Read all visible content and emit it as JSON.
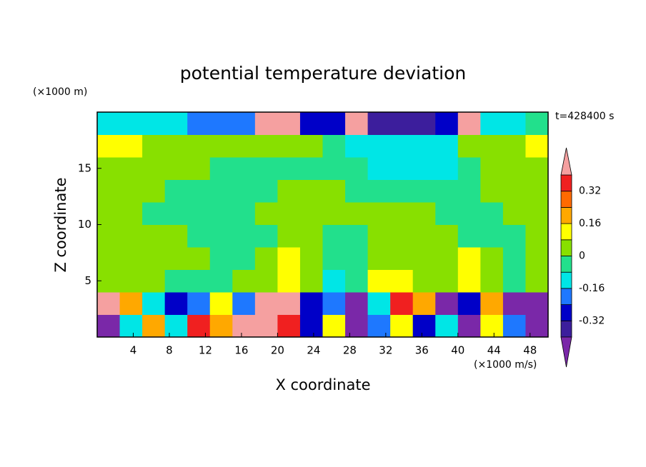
{
  "chart_data": {
    "type": "contour",
    "title": "potential temperature deviation",
    "x_label": "X coordinate",
    "y_label": "Z coordinate",
    "x_unit": "(×1000 m/s)",
    "y_unit": "(×1000 m)",
    "annotation": "t=428400 s",
    "xlim": [
      0,
      50
    ],
    "ylim": [
      0,
      20
    ],
    "xticks": [
      4,
      8,
      12,
      16,
      20,
      24,
      28,
      32,
      36,
      40,
      44,
      48
    ],
    "yticks": [
      5,
      10,
      15
    ],
    "x": [
      1.25,
      3.75,
      6.25,
      8.75,
      11.25,
      13.75,
      16.25,
      18.75,
      21.25,
      23.75,
      26.25,
      28.75,
      31.25,
      33.75,
      36.25,
      38.75,
      41.25,
      43.75,
      46.25,
      48.75
    ],
    "y": [
      1,
      3,
      5,
      7,
      9,
      11,
      13,
      15,
      17,
      19
    ],
    "values": [
      [
        -0.45,
        -0.12,
        0.2,
        -0.12,
        0.36,
        0.2,
        0.45,
        0.45,
        0.36,
        -0.28,
        0.1,
        -0.45,
        -0.2,
        0.1,
        -0.28,
        -0.12,
        -0.45,
        0.1,
        -0.2,
        -0.45
      ],
      [
        0.45,
        0.2,
        -0.12,
        -0.28,
        -0.2,
        0.1,
        -0.2,
        0.45,
        0.45,
        -0.28,
        -0.2,
        -0.45,
        -0.12,
        0.36,
        0.2,
        -0.45,
        -0.28,
        0.2,
        -0.45,
        -0.45
      ],
      [
        0.04,
        0.04,
        0.04,
        -0.04,
        -0.04,
        -0.04,
        0.04,
        0.04,
        0.1,
        0.04,
        -0.12,
        -0.04,
        0.1,
        0.1,
        0.04,
        0.04,
        0.1,
        0.04,
        -0.04,
        0.04
      ],
      [
        0.04,
        0.04,
        0.04,
        0.04,
        0.04,
        -0.04,
        -0.04,
        0.04,
        0.1,
        0.04,
        -0.04,
        -0.04,
        0.04,
        0.04,
        0.04,
        0.04,
        0.1,
        0.04,
        -0.04,
        0.04
      ],
      [
        0.04,
        0.04,
        0.04,
        0.04,
        -0.04,
        -0.04,
        -0.04,
        -0.04,
        0.04,
        0.04,
        -0.04,
        -0.04,
        0.04,
        0.04,
        0.04,
        0.04,
        -0.04,
        -0.04,
        -0.04,
        0.04
      ],
      [
        0.04,
        0.04,
        -0.04,
        -0.04,
        -0.04,
        -0.04,
        -0.04,
        0.04,
        0.04,
        0.04,
        0.04,
        0.04,
        0.04,
        0.04,
        0.04,
        -0.04,
        -0.04,
        -0.04,
        0.04,
        0.04
      ],
      [
        0.04,
        0.04,
        0.04,
        -0.04,
        -0.04,
        -0.04,
        -0.04,
        -0.04,
        0.04,
        0.04,
        0.04,
        -0.04,
        -0.04,
        -0.04,
        -0.04,
        -0.04,
        -0.04,
        0.04,
        0.04,
        0.04
      ],
      [
        0.04,
        0.04,
        0.04,
        0.04,
        0.04,
        -0.04,
        -0.04,
        -0.04,
        -0.04,
        -0.04,
        -0.04,
        -0.04,
        -0.12,
        -0.12,
        -0.12,
        -0.12,
        -0.04,
        0.04,
        0.04,
        0.04
      ],
      [
        0.1,
        0.1,
        0.04,
        0.04,
        0.04,
        0.04,
        0.04,
        0.04,
        0.04,
        0.04,
        -0.04,
        -0.12,
        -0.12,
        -0.12,
        -0.12,
        -0.12,
        0.04,
        0.04,
        0.04,
        0.1
      ],
      [
        -0.12,
        -0.12,
        -0.12,
        -0.12,
        -0.2,
        -0.2,
        -0.2,
        0.45,
        0.45,
        -0.3,
        -0.3,
        0.45,
        -0.35,
        -0.35,
        -0.35,
        -0.3,
        0.45,
        -0.12,
        -0.12,
        -0.04
      ]
    ],
    "levels": [
      -0.4,
      -0.32,
      -0.24,
      -0.16,
      -0.08,
      0,
      0.08,
      0.16,
      0.24,
      0.32,
      0.4
    ],
    "colors": [
      "#7a28a8",
      "#3c1e9c",
      "#0000c8",
      "#1e78ff",
      "#00e6e6",
      "#22e08c",
      "#88e000",
      "#ffff00",
      "#ffa800",
      "#ff6a00",
      "#f02020",
      "#f5a0a0"
    ],
    "colorbar_ticks": [
      -0.32,
      -0.16,
      0,
      0.16,
      0.32
    ]
  }
}
